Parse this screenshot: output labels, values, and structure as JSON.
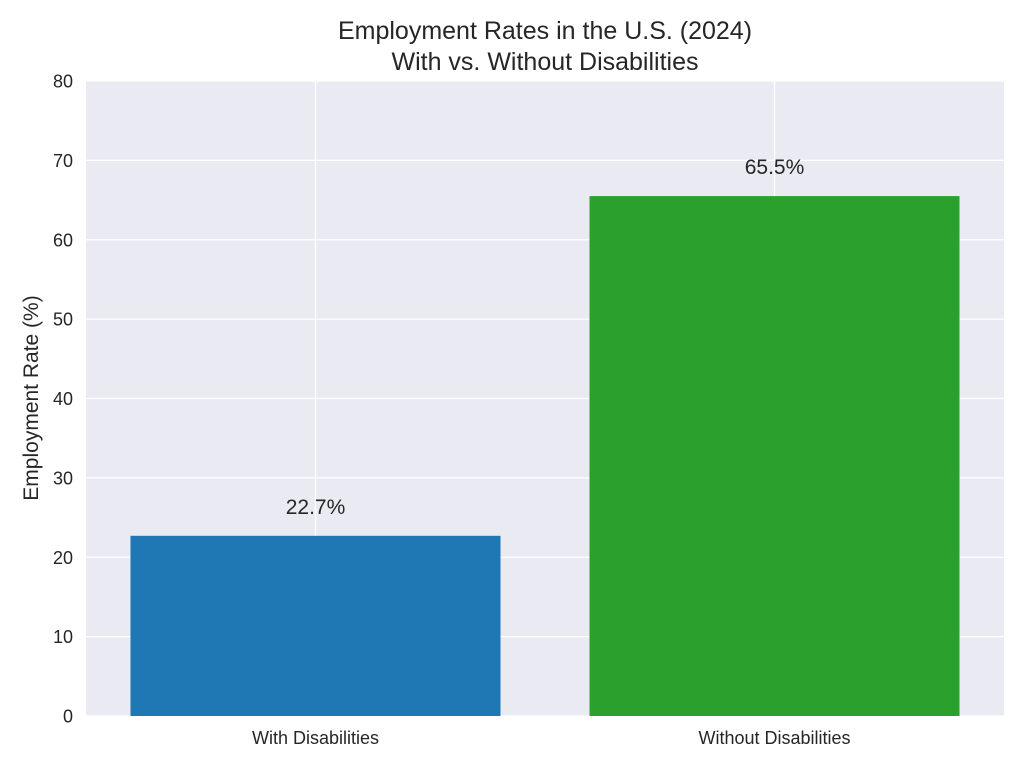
{
  "chart_data": {
    "type": "bar",
    "title": "Employment Rates in the U.S. (2024)",
    "subtitle": "With vs. Without Disabilities",
    "xlabel": "",
    "ylabel": "Employment Rate (%)",
    "categories": [
      "With Disabilities",
      "Without Disabilities"
    ],
    "values": [
      22.7,
      65.5
    ],
    "data_labels": [
      "22.7%",
      "65.5%"
    ],
    "colors": [
      "#1f77b4",
      "#2ca02c"
    ],
    "ylim": [
      0,
      80
    ],
    "yticks": [
      0,
      10,
      20,
      30,
      40,
      50,
      60,
      70,
      80
    ],
    "grid": true,
    "background": "#eaeaf2"
  }
}
